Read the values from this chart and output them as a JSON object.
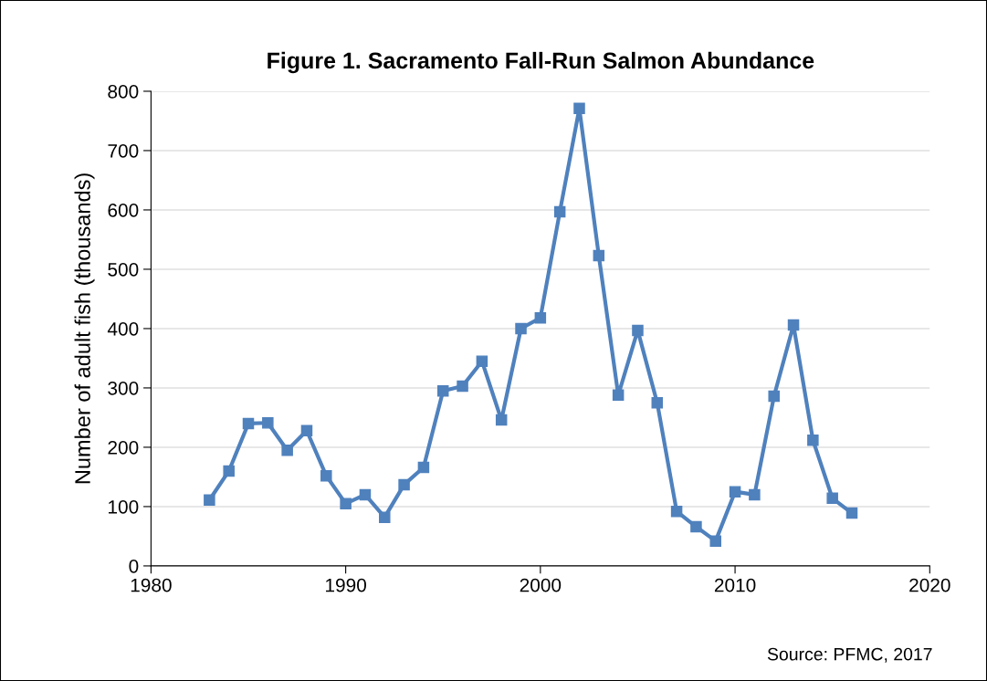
{
  "chart_data": {
    "type": "line",
    "title": "Figure 1. Sacramento Fall-Run Salmon Abundance",
    "ylabel": "Number of adult fish (thousands)",
    "x": [
      1983,
      1984,
      1985,
      1986,
      1987,
      1988,
      1989,
      1990,
      1991,
      1992,
      1993,
      1994,
      1995,
      1996,
      1997,
      1998,
      1999,
      2000,
      2001,
      2002,
      2003,
      2004,
      2005,
      2006,
      2007,
      2008,
      2009,
      2010,
      2011,
      2012,
      2013,
      2014,
      2015,
      2016
    ],
    "series": [
      {
        "color": "#4f81bd",
        "values": [
          111,
          160,
          240,
          241,
          195,
          228,
          152,
          105,
          120,
          82,
          137,
          166,
          295,
          303,
          345,
          246,
          400,
          418,
          597,
          771,
          523,
          288,
          397,
          275,
          92,
          66,
          42,
          125,
          120,
          286,
          406,
          212,
          114,
          89
        ]
      }
    ],
    "xlim": [
      1980,
      2020
    ],
    "xticks": [
      1980,
      1990,
      2000,
      2010,
      2020
    ],
    "ylim": [
      0,
      800
    ],
    "yticks": [
      0,
      100,
      200,
      300,
      400,
      500,
      600,
      700,
      800
    ],
    "grid": "y",
    "marker": "square",
    "line_style": "solid",
    "legend": false,
    "annotations": [
      "Source: PFMC, 2017"
    ]
  }
}
